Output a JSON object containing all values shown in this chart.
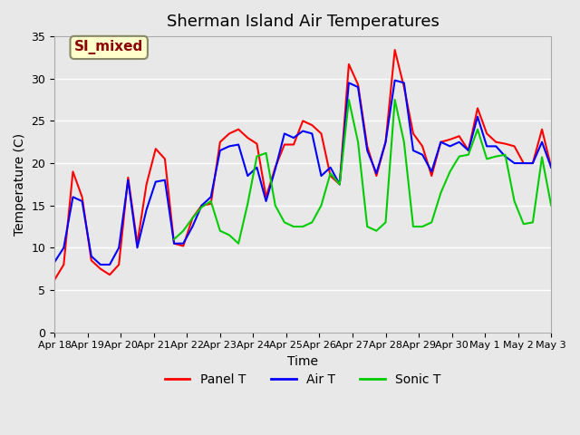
{
  "title": "Sherman Island Air Temperatures",
  "xlabel": "Time",
  "ylabel": "Temperature (C)",
  "ylim": [
    0,
    35
  ],
  "xlim": [
    0,
    15
  ],
  "background_color": "#e8e8e8",
  "plot_bg_color": "#e8e8e8",
  "annotation_text": "SI_mixed",
  "annotation_color": "#8b0000",
  "annotation_bg": "#ffffcc",
  "xtick_labels": [
    "Apr 18",
    "Apr 19",
    "Apr 20",
    "Apr 21",
    "Apr 22",
    "Apr 23",
    "Apr 24",
    "Apr 25",
    "Apr 26",
    "Apr 27",
    "Apr 28",
    "Apr 29",
    "Apr 30",
    "May 1",
    "May 2",
    "May 3"
  ],
  "ytick_labels": [
    0,
    5,
    10,
    15,
    20,
    25,
    30,
    35
  ],
  "panel_t": [
    6.2,
    8.0,
    19.0,
    16.0,
    8.5,
    7.5,
    6.8,
    8.0,
    18.3,
    10.5,
    17.5,
    21.7,
    20.5,
    10.5,
    10.2,
    13.5,
    15.0,
    15.2,
    22.5,
    23.5,
    24.0,
    23.0,
    22.3,
    16.0,
    19.5,
    22.2,
    22.2,
    25.0,
    24.5,
    23.5,
    18.5,
    17.5,
    31.7,
    29.3,
    22.0,
    18.5,
    22.5,
    33.4,
    29.0,
    23.5,
    22.0,
    18.5,
    22.5,
    22.8,
    23.2,
    21.5,
    26.5,
    23.5,
    22.5,
    22.3,
    22.0,
    20.0,
    20.0,
    24.0,
    19.5
  ],
  "air_t": [
    8.3,
    10.0,
    16.0,
    15.5,
    9.0,
    8.0,
    8.0,
    10.0,
    18.0,
    10.0,
    14.5,
    17.8,
    18.0,
    10.5,
    10.5,
    12.5,
    15.0,
    16.0,
    21.5,
    22.0,
    22.2,
    18.5,
    19.5,
    15.5,
    19.3,
    23.5,
    23.0,
    23.8,
    23.5,
    18.5,
    19.5,
    17.5,
    29.5,
    29.0,
    21.5,
    18.8,
    22.5,
    29.8,
    29.5,
    21.5,
    21.0,
    19.0,
    22.5,
    22.0,
    22.5,
    21.5,
    25.5,
    22.0,
    22.0,
    20.8,
    20.0,
    20.0,
    20.0,
    22.5,
    19.5
  ],
  "sonic_t": [
    null,
    null,
    null,
    null,
    null,
    null,
    null,
    null,
    null,
    null,
    null,
    null,
    null,
    11.0,
    12.0,
    13.5,
    14.8,
    15.5,
    12.0,
    11.5,
    10.5,
    15.2,
    20.8,
    21.2,
    15.0,
    13.0,
    12.5,
    12.5,
    13.0,
    15.0,
    18.8,
    17.5,
    27.5,
    22.5,
    12.5,
    12.0,
    13.0,
    27.5,
    22.5,
    12.5,
    12.5,
    13.0,
    16.5,
    19.0,
    20.8,
    21.0,
    24.0,
    20.5,
    20.8,
    21.0,
    15.5,
    12.8,
    13.0,
    20.7,
    15.0
  ],
  "panel_color": "#ff0000",
  "air_color": "#0000ff",
  "sonic_color": "#00cc00",
  "line_width": 1.5,
  "legend_labels": [
    "Panel T",
    "Air T",
    "Sonic T"
  ],
  "grid_color": "#ffffff",
  "grid_alpha": 1.0
}
